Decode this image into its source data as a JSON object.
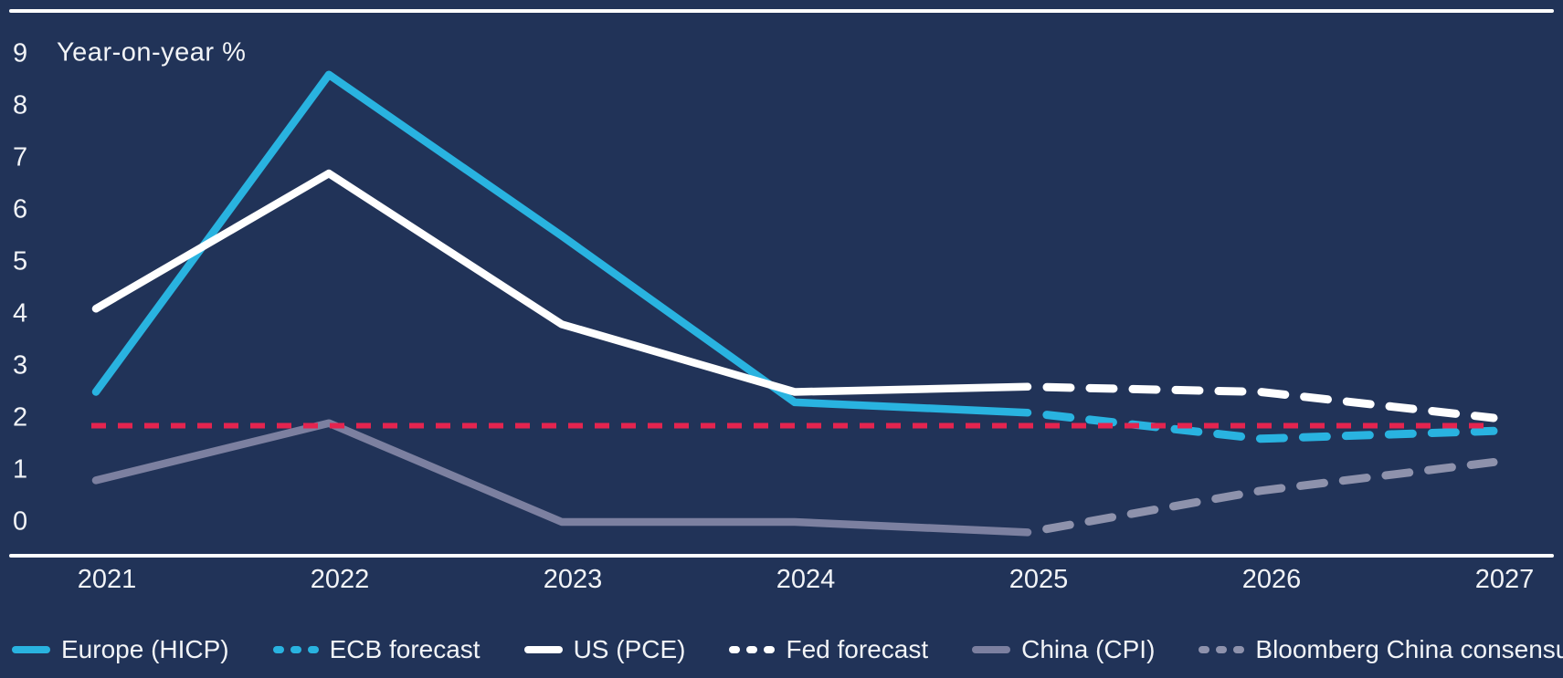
{
  "page": {
    "background_color": "#213358",
    "text_color": "#f2f4f7"
  },
  "chart_data": {
    "type": "line",
    "title": "",
    "ylabel": "Year-on-year %",
    "xlabel": "",
    "x_categories": [
      "2021",
      "2022",
      "2023",
      "2024",
      "2025",
      "2026",
      "2027"
    ],
    "y_ticks": [
      9,
      8,
      7,
      6,
      5,
      4,
      3,
      2,
      1,
      0
    ],
    "ylim": [
      -0.5,
      9.5
    ],
    "grid": false,
    "legend_position": "bottom",
    "series": [
      {
        "name": "Europe (HICP)",
        "color": "#29b3e0",
        "line_style": "solid",
        "years": [
          2021,
          2022,
          2023,
          2024,
          2025
        ],
        "values": [
          2.5,
          8.6,
          5.5,
          2.3,
          2.1
        ]
      },
      {
        "name": "ECB forecast",
        "color": "#29b3e0",
        "line_style": "dashed",
        "years": [
          2025,
          2026,
          2027
        ],
        "values": [
          2.1,
          1.6,
          1.75
        ]
      },
      {
        "name": "US (PCE)",
        "color": "#ffffff",
        "line_style": "solid",
        "years": [
          2021,
          2022,
          2023,
          2024,
          2025
        ],
        "values": [
          4.1,
          6.7,
          3.8,
          2.5,
          2.6
        ]
      },
      {
        "name": "Fed forecast",
        "color": "#ffffff",
        "line_style": "dashed",
        "years": [
          2025,
          2026,
          2027
        ],
        "values": [
          2.6,
          2.5,
          2.0
        ]
      },
      {
        "name": "China (CPI)",
        "color": "#7c80a0",
        "line_style": "solid",
        "years": [
          2021,
          2022,
          2023,
          2024,
          2025
        ],
        "values": [
          0.8,
          1.9,
          0.0,
          0.0,
          -0.2
        ]
      },
      {
        "name": "Bloomberg China consensus",
        "color": "#8e92ac",
        "line_style": "dashed",
        "years": [
          2025,
          2026,
          2027
        ],
        "values": [
          -0.2,
          0.6,
          1.15
        ]
      }
    ],
    "reference_line": {
      "value": 1.85,
      "color": "#e4244f",
      "line_style": "dashed"
    }
  },
  "legend": {
    "items": [
      {
        "label": "Europe (HICP)",
        "color": "#29b3e0",
        "style": "solid"
      },
      {
        "label": "ECB forecast",
        "color": "#29b3e0",
        "style": "dashed"
      },
      {
        "label": "US (PCE)",
        "color": "#ffffff",
        "style": "solid"
      },
      {
        "label": "Fed forecast",
        "color": "#ffffff",
        "style": "dashed"
      },
      {
        "label": "China (CPI)",
        "color": "#7c80a0",
        "style": "solid"
      },
      {
        "label": "Bloomberg China consensus",
        "color": "#8e92ac",
        "style": "dashed"
      }
    ]
  }
}
